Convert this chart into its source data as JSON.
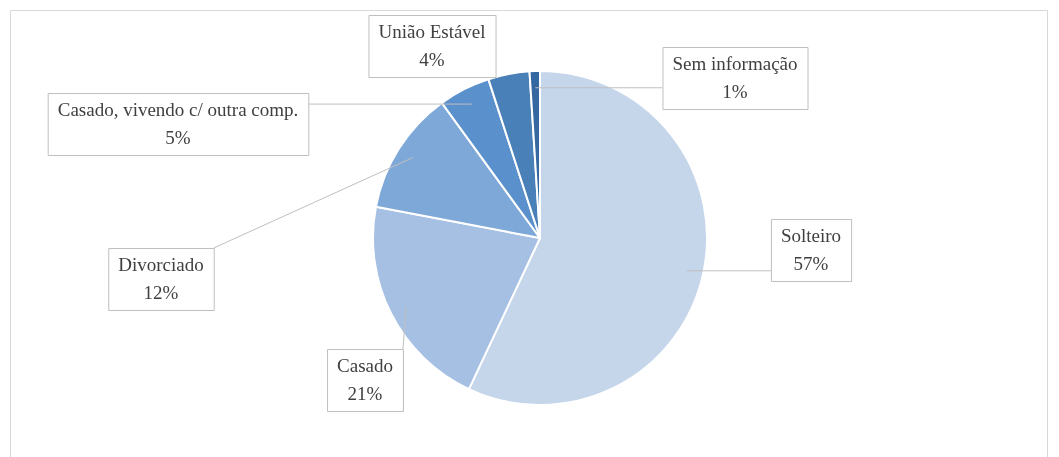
{
  "chart_data": {
    "type": "pie",
    "categories": [
      "Solteiro",
      "Casado",
      "Divorciado",
      "Casado, vivendo c/ outra comp.",
      "União Estável",
      "Sem informação"
    ],
    "values": [
      57,
      21,
      12,
      5,
      4,
      1
    ],
    "value_labels": [
      "57%",
      "21%",
      "12%",
      "5%",
      "4%",
      "1%"
    ],
    "colors": [
      "#c5d5ea",
      "#a6c0e3",
      "#7ea8d8",
      "#5a90cc",
      "#4a80b8",
      "#3568a0"
    ],
    "legend": false
  }
}
